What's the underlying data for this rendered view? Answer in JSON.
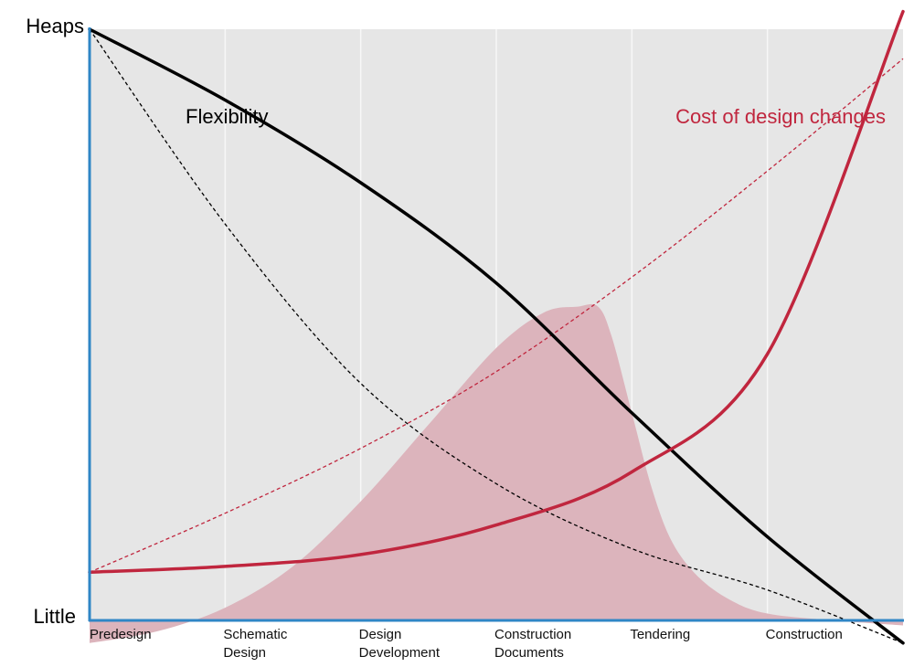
{
  "chart_data": {
    "type": "line",
    "title": "",
    "xlabel": "",
    "ylabel": "",
    "y_axis_words": {
      "top": "Heaps",
      "bottom": "Little"
    },
    "categories": [
      [
        "Predesign"
      ],
      [
        "Schematic",
        "Design"
      ],
      [
        "Design",
        "Development"
      ],
      [
        "Construction",
        "Documents"
      ],
      [
        "Tendering"
      ],
      [
        "Construction"
      ]
    ],
    "xlim": [
      0,
      6
    ],
    "ylim": [
      0,
      100
    ],
    "grid": "vertical",
    "colors": {
      "background": "#e6e6e6",
      "axis": "#2f86c6",
      "flexibility": "#000000",
      "cost": "#c0263e",
      "area": "#dcb4bc",
      "grid": "#f7f7f7"
    },
    "series": [
      {
        "name": "Flexibility",
        "style": "solid",
        "color": "#000000",
        "x": [
          0,
          1,
          2,
          3,
          4,
          5,
          6
        ],
        "y": [
          100,
          88,
          74,
          57,
          35,
          14,
          -4
        ]
      },
      {
        "name": "",
        "style": "dashed",
        "color": "#000000",
        "x": [
          0,
          1,
          2,
          3,
          4,
          5,
          6
        ],
        "y": [
          100,
          67,
          40,
          23,
          12,
          5,
          -4
        ]
      },
      {
        "name": "Cost of design changes",
        "style": "solid",
        "color": "#c0263e",
        "x": [
          0,
          1,
          2,
          3,
          4,
          5,
          6
        ],
        "y": [
          8,
          9,
          11,
          16,
          25,
          45,
          103
        ]
      },
      {
        "name": "",
        "style": "dashed",
        "color": "#c0263e",
        "x": [
          0,
          1,
          2,
          3,
          4,
          5,
          6
        ],
        "y": [
          8,
          18,
          29,
          42,
          58,
          76,
          95
        ]
      },
      {
        "name": "",
        "style": "area",
        "color": "#dcb4bc",
        "x": [
          0,
          0.5,
          1,
          1.5,
          2,
          2.5,
          3,
          3.35,
          3.6,
          3.75,
          3.85,
          4.0,
          4.15,
          4.3,
          4.5,
          4.75,
          5.0,
          5.4,
          6.0
        ],
        "y": [
          -4,
          -2,
          2,
          9,
          20,
          33,
          46,
          52,
          53,
          53,
          48,
          35,
          22,
          13,
          7,
          3,
          1,
          0,
          -1
        ]
      }
    ]
  }
}
